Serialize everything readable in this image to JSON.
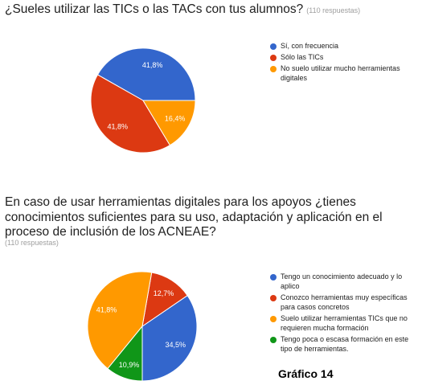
{
  "charts": [
    {
      "title": "¿Sueles utilizar las TICs o las TACs con tus alumnos?",
      "responses": "(110 respuestas)"
    },
    {
      "title": "En caso de usar herramientas digitales para los apoyos ¿tienes conocimientos suficientes para su uso, adaptación y aplicación en el proceso de inclusión de los ACNEAE?",
      "responses": "(110 respuestas)"
    }
  ],
  "caption": "Gráfico 14",
  "chart_data": [
    {
      "type": "pie",
      "title": "¿Sueles utilizar las TICs o las TACs con tus alumnos?",
      "legend_position": "right",
      "slices": [
        {
          "label": "Sí, con frecuencia",
          "value": 41.8,
          "display": "41,8%",
          "color": "#3366cc"
        },
        {
          "label": "Sólo las TICs",
          "value": 41.8,
          "display": "41,8%",
          "color": "#dc3912"
        },
        {
          "label": "No suelo utilizar mucho herramientas digitales",
          "value": 16.4,
          "display": "16,4%",
          "color": "#ff9900"
        }
      ]
    },
    {
      "type": "pie",
      "title": "En caso de usar herramientas digitales para los apoyos ¿tienes conocimientos suficientes para su uso, adaptación y aplicación en el proceso de inclusión de los ACNEAE?",
      "legend_position": "right",
      "slices": [
        {
          "label": "Tengo un conocimiento adecuado y lo aplico",
          "value": 34.5,
          "display": "34,5%",
          "color": "#3366cc"
        },
        {
          "label": "Conozco herramientas muy específicas para casos concretos",
          "value": 12.7,
          "display": "12,7%",
          "color": "#dc3912"
        },
        {
          "label": "Suelo utilizar herramientas TICs que no requieren mucha formación",
          "value": 41.8,
          "display": "41,8%",
          "color": "#ff9900"
        },
        {
          "label": "Tengo poca o escasa formación en este tipo de herramientas.",
          "value": 10.9,
          "display": "10,9%",
          "color": "#109618"
        }
      ]
    }
  ]
}
